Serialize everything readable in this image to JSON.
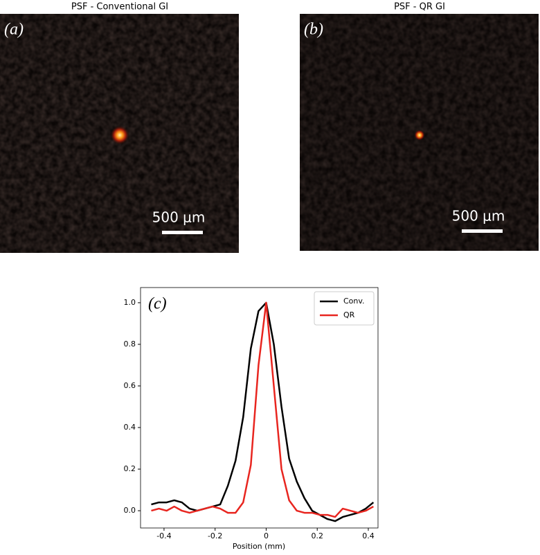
{
  "images": [
    {
      "title": "PSF - Conventional GI",
      "label": "(a)",
      "scale_bar": "500 μm"
    },
    {
      "title": "PSF - QR GI",
      "label": "(b)",
      "scale_bar": "500 μm"
    }
  ],
  "chart_data": {
    "type": "line",
    "annotation": "(c)",
    "x_label": "Position (mm)",
    "x": [
      -0.45,
      -0.42,
      -0.39,
      -0.36,
      -0.33,
      -0.3,
      -0.27,
      -0.24,
      -0.21,
      -0.18,
      -0.15,
      -0.12,
      -0.09,
      -0.06,
      -0.03,
      0,
      0.03,
      0.06,
      0.09,
      0.12,
      0.15,
      0.18,
      0.21,
      0.24,
      0.27,
      0.3,
      0.33,
      0.36,
      0.39,
      0.42
    ],
    "series": [
      {
        "name": "Conv.",
        "color": "#000000",
        "values": [
          0.03,
          0.04,
          0.04,
          0.05,
          0.04,
          0.01,
          0.0,
          0.01,
          0.02,
          0.03,
          0.12,
          0.24,
          0.45,
          0.78,
          0.96,
          1.0,
          0.8,
          0.5,
          0.25,
          0.14,
          0.06,
          0.0,
          -0.02,
          -0.04,
          -0.05,
          -0.03,
          -0.02,
          -0.01,
          0.01,
          0.04
        ]
      },
      {
        "name": "QR",
        "color": "#e8251f",
        "values": [
          0.0,
          0.01,
          0.0,
          0.02,
          0.0,
          -0.01,
          0.0,
          0.01,
          0.02,
          0.01,
          -0.01,
          -0.01,
          0.04,
          0.22,
          0.7,
          1.0,
          0.6,
          0.2,
          0.05,
          0.0,
          -0.01,
          -0.01,
          -0.02,
          -0.02,
          -0.03,
          0.01,
          0.0,
          -0.01,
          0.0,
          0.02
        ]
      }
    ],
    "xlim": [
      -0.492,
      0.438
    ],
    "ylim": [
      -0.083,
      1.073
    ],
    "xticks": [
      -0.4,
      -0.2,
      0.0,
      0.2,
      0.4
    ],
    "yticks": [
      {
        "value": 0,
        "label": "0.0"
      },
      0.2,
      0.4,
      0.6,
      0.8,
      {
        "value": 1,
        "label": "1.0"
      }
    ],
    "legend": "upper right"
  }
}
